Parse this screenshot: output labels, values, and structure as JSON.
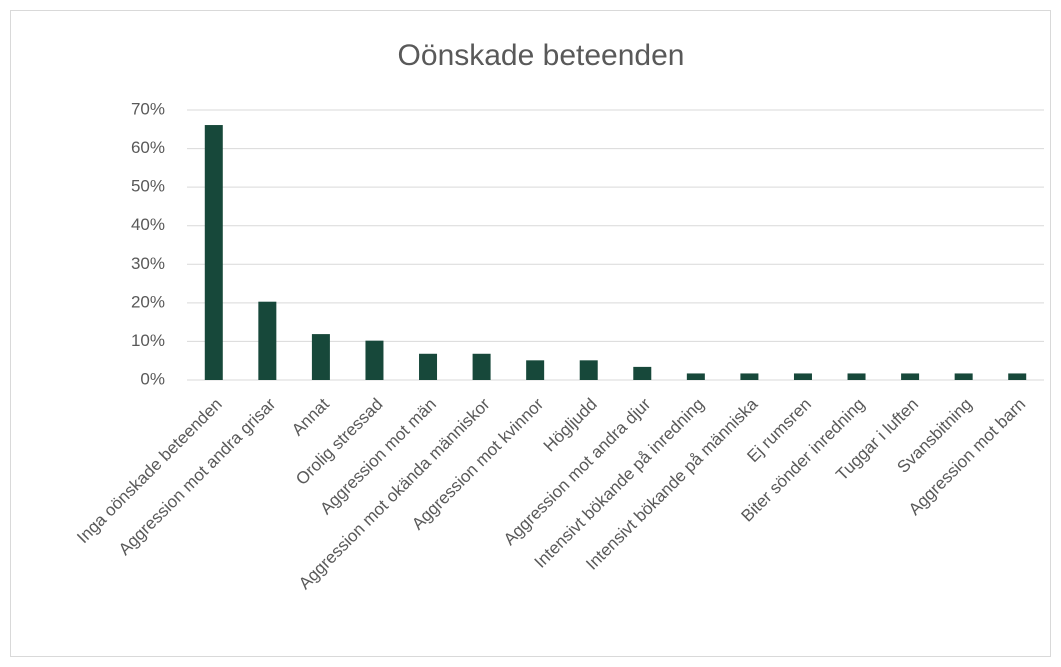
{
  "chart_data": {
    "type": "bar",
    "title": "Oönskade beteenden",
    "categories": [
      "Inga oönskade beteenden",
      "Aggression mot andra grisar",
      "Annat",
      "Orolig stressad",
      "Aggression mot män",
      "Aggression mot okända människor",
      "Aggression mot kvinnor",
      "Högljudd",
      "Aggression mot andra djur",
      "Intensivt bökande på inredning",
      "Intensivt bökande på människa",
      "Ej rumsren",
      "Biter sönder inredning",
      "Tuggar i luften",
      "Svansbitning",
      "Aggression mot barn"
    ],
    "values": [
      66.1,
      20.3,
      11.9,
      10.2,
      6.8,
      6.8,
      5.1,
      5.1,
      3.4,
      1.7,
      1.7,
      1.7,
      1.7,
      1.7,
      1.7,
      1.7
    ],
    "color": "#17483a",
    "ylim": [
      0,
      70
    ],
    "yticks": [
      {
        "value": 0,
        "label": "0%"
      },
      {
        "value": 10,
        "label": "10%"
      },
      {
        "value": 20,
        "label": "20%"
      },
      {
        "value": 30,
        "label": "30%"
      },
      {
        "value": 40,
        "label": "40%"
      },
      {
        "value": 50,
        "label": "50%"
      },
      {
        "value": 60,
        "label": "60%"
      },
      {
        "value": 70,
        "label": "70%"
      }
    ],
    "grid": true
  }
}
